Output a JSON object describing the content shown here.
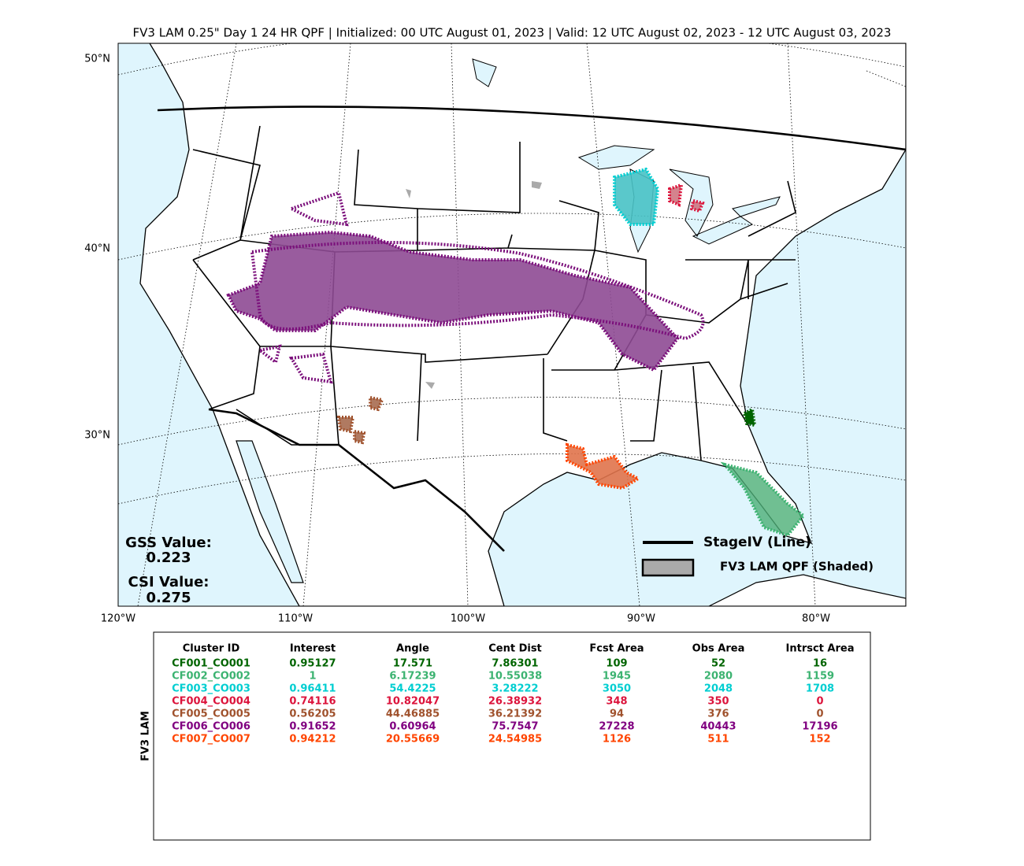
{
  "title": "FV3 LAM 0.25\" Day 1 24 HR QPF | Initialized: 00 UTC August 01, 2023 | Valid: 12 UTC August 02, 2023 - 12 UTC August 03, 2023",
  "map": {
    "lat_labels": [
      "50°N",
      "40°N",
      "30°N"
    ],
    "lon_labels": [
      "120°W",
      "110°W",
      "100°W",
      "90°W",
      "80°W"
    ]
  },
  "scores": {
    "gss_label": "GSS Value:",
    "gss_value": "0.223",
    "csi_label": "CSI Value:",
    "csi_value": "0.275"
  },
  "legend": {
    "line_label": "StageIV (Line)",
    "shaded_label": "FV3 LAM QPF (Shaded)"
  },
  "table": {
    "side_label": "FV3 LAM",
    "header": [
      "Cluster ID",
      "Interest",
      "Angle",
      "Cent Dist",
      "Fcst Area",
      "Obs Area",
      "Intrsct Area"
    ],
    "rows": [
      {
        "color": "#006400",
        "cells": [
          "CF001_CO001",
          "0.95127",
          "17.571",
          "7.86301",
          "109",
          "52",
          "16"
        ]
      },
      {
        "color": "#3cb371",
        "cells": [
          "CF002_CO002",
          "1",
          "6.17239",
          "10.55038",
          "1945",
          "2080",
          "1159"
        ]
      },
      {
        "color": "#00ced1",
        "cells": [
          "CF003_CO003",
          "0.96411",
          "54.4225",
          "3.28222",
          "3050",
          "2048",
          "1708"
        ]
      },
      {
        "color": "#dc143c",
        "cells": [
          "CF004_CO004",
          "0.74116",
          "10.82047",
          "26.38932",
          "348",
          "350",
          "0"
        ]
      },
      {
        "color": "#a0522d",
        "cells": [
          "CF005_CO005",
          "0.56205",
          "44.46885",
          "36.21392",
          "94",
          "376",
          "0"
        ]
      },
      {
        "color": "#800080",
        "cells": [
          "CF006_CO006",
          "0.91652",
          "0.60964",
          "75.7547",
          "27228",
          "40443",
          "17196"
        ]
      },
      {
        "color": "#ff4500",
        "cells": [
          "CF007_CO007",
          "0.94212",
          "20.55669",
          "24.54985",
          "1126",
          "511",
          "152"
        ]
      }
    ]
  }
}
